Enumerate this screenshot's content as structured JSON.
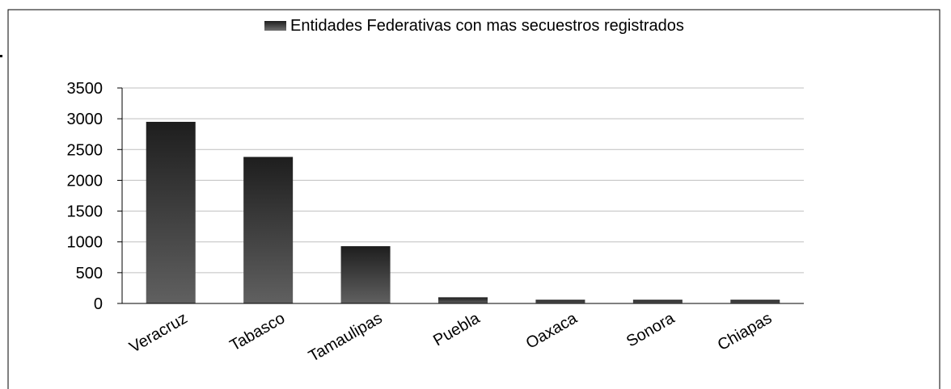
{
  "chart_data": {
    "type": "bar",
    "title": "",
    "xlabel": "",
    "ylabel": "",
    "legend": {
      "position": "top-right",
      "entries": [
        "Entidades Federativas con mas secuestros registrados"
      ]
    },
    "categories": [
      "Veracruz",
      "Tabasco",
      "Tamaulipas",
      "Puebla",
      "Oaxaca",
      "Sonora",
      "Chiapas"
    ],
    "series": [
      {
        "name": "Entidades Federativas con mas secuestros registrados",
        "values": [
          2950,
          2380,
          930,
          100,
          60,
          60,
          60
        ]
      }
    ],
    "ylim": [
      0,
      3500
    ],
    "yticks": [
      "0",
      "500",
      "1000",
      "1500",
      "2000",
      "2500",
      "3000",
      "3500"
    ],
    "grid": true,
    "colors": {
      "bar_top": "#1e1e1e",
      "bar_bottom": "#606060",
      "grid": "#bfbfbf",
      "axis": "#000000",
      "text": "#000000"
    }
  }
}
